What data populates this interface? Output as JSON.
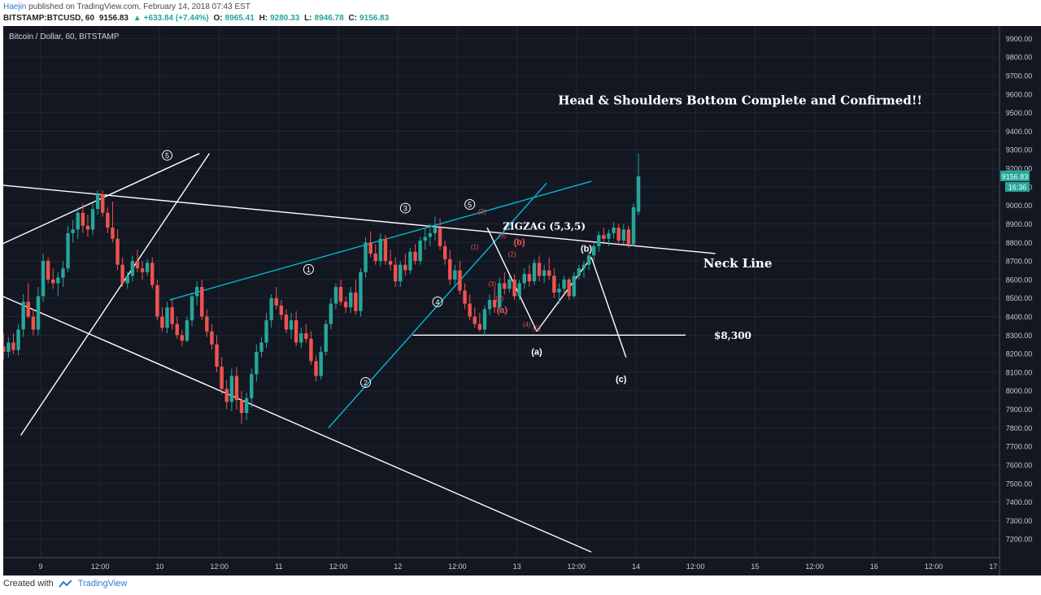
{
  "header": {
    "author": "Haejin",
    "published": "published on TradingView.com, February 14, 2018 07:43 EST",
    "symbol": "BITSTAMP:BTCUSD, 60",
    "last": "9156.83",
    "change": "+633.84 (+7.44%)",
    "open_label": "O:",
    "open": "8965.41",
    "high_label": "H:",
    "high": "9280.33",
    "low_label": "L:",
    "low": "8946.78",
    "close_label": "C:",
    "close": "9156.83"
  },
  "footer": {
    "created_with": "Created with",
    "brand": "TradingView"
  },
  "colors": {
    "background": "#131722",
    "up": "#26a69a",
    "down": "#ef5350",
    "trend": "#ffffff",
    "channel": "#00bcd4",
    "wave_sub": "#ef5350"
  },
  "chart_data": {
    "type": "candlestick",
    "title": "Bitcoin / Dollar, 60, BITSTAMP",
    "ylim": [
      7100,
      9950
    ],
    "yticks": [
      "9900.00",
      "9800.00",
      "9700.00",
      "9600.00",
      "9500.00",
      "9400.00",
      "9300.00",
      "9200.00",
      "9100.00",
      "9000.00",
      "8900.00",
      "8800.00",
      "8700.00",
      "8600.00",
      "8500.00",
      "8400.00",
      "8300.00",
      "8200.00",
      "8100.00",
      "8000.00",
      "7900.00",
      "7800.00",
      "7700.00",
      "7600.00",
      "7500.00",
      "7400.00",
      "7300.00",
      "7200.00"
    ],
    "xticks": [
      {
        "label": "9",
        "t": 12
      },
      {
        "label": "12:00",
        "t": 24
      },
      {
        "label": "10",
        "t": 36
      },
      {
        "label": "12:00",
        "t": 48
      },
      {
        "label": "11",
        "t": 60
      },
      {
        "label": "12:00",
        "t": 72
      },
      {
        "label": "12",
        "t": 84
      },
      {
        "label": "12:00",
        "t": 96
      },
      {
        "label": "13",
        "t": 108
      },
      {
        "label": "12:00",
        "t": 120
      },
      {
        "label": "14",
        "t": 132
      },
      {
        "label": "12:00",
        "t": 144
      },
      {
        "label": "15",
        "t": 156
      },
      {
        "label": "12:00",
        "t": 168
      },
      {
        "label": "16",
        "t": 180
      },
      {
        "label": "12:00",
        "t": 192
      },
      {
        "label": "17",
        "t": 204
      }
    ],
    "price_badge": "9156.83",
    "countdown_badge": "16:36",
    "annotations": {
      "main": "Head & Shoulders Bottom Complete and Confirmed!!",
      "zigzag": "ZIGZAG (5,3,5)",
      "neck": "Neck Line",
      "level": "$8,300",
      "wave_a": "(a)",
      "wave_b": "(b)",
      "wave_c": "(c)",
      "red_a": "(a)",
      "red_b": "(b)"
    },
    "waves": [
      {
        "label": "5",
        "t": 37.5,
        "p": 9270
      },
      {
        "label": "1",
        "t": 66,
        "p": 8655
      },
      {
        "label": "2",
        "t": 77.5,
        "p": 8045
      },
      {
        "label": "3",
        "t": 85.5,
        "p": 8985
      },
      {
        "label": "4",
        "t": 92,
        "p": 8480
      },
      {
        "label": "5",
        "t": 98.5,
        "p": 9005
      }
    ],
    "sub_waves": [
      {
        "label": "(2)",
        "t": 101,
        "p": 8955
      },
      {
        "label": "(1)",
        "t": 99.5,
        "p": 8765
      },
      {
        "label": "(3)",
        "t": 105,
        "p": 8825
      },
      {
        "label": "(2)",
        "t": 107,
        "p": 8725
      },
      {
        "label": "(3)",
        "t": 103,
        "p": 8565
      },
      {
        "label": "(5)",
        "t": 104.5,
        "p": 8485
      },
      {
        "label": "(4)",
        "t": 110,
        "p": 8345
      },
      {
        "label": "(5)",
        "t": 112,
        "p": 8325
      }
    ],
    "lines": [
      {
        "name": "neck-line",
        "color": "white",
        "from": [
          0,
          9120
        ],
        "to": [
          148,
          8740
        ]
      },
      {
        "name": "upper-trend-left",
        "color": "white",
        "from": [
          0,
          8740
        ],
        "to": [
          44,
          9280
        ]
      },
      {
        "name": "lower-trend",
        "color": "white",
        "from": [
          0,
          8560
        ],
        "to": [
          123,
          7130
        ]
      },
      {
        "name": "left-rise-line",
        "color": "white",
        "from": [
          8,
          7760
        ],
        "to": [
          46,
          9280
        ]
      },
      {
        "name": "cyan-upper",
        "color": "cyan",
        "from": [
          38,
          8490
        ],
        "to": [
          123,
          9130
        ]
      },
      {
        "name": "cyan-lower",
        "color": "cyan",
        "from": [
          70,
          7800
        ],
        "to": [
          114,
          9120
        ]
      },
      {
        "name": "level-8300",
        "color": "white",
        "from": [
          87,
          8300
        ],
        "to": [
          142,
          8300
        ]
      },
      {
        "name": "zigzag-a",
        "color": "white",
        "from": [
          102,
          8880
        ],
        "to": [
          112,
          8320
        ]
      },
      {
        "name": "zigzag-b",
        "color": "white",
        "from": [
          112,
          8320
        ],
        "to": [
          123,
          8720
        ]
      },
      {
        "name": "zigzag-c",
        "color": "white",
        "from": [
          123,
          8720
        ],
        "to": [
          130,
          8180
        ]
      }
    ],
    "candles": [
      {
        "o": 8180,
        "h": 8290,
        "l": 8050,
        "c": 8260
      },
      {
        "o": 8260,
        "h": 8390,
        "l": 8130,
        "c": 8140
      },
      {
        "o": 8140,
        "h": 8200,
        "l": 7950,
        "c": 7980
      },
      {
        "o": 7980,
        "h": 8110,
        "l": 7850,
        "c": 7950
      },
      {
        "o": 7950,
        "h": 8150,
        "l": 7880,
        "c": 8120
      },
      {
        "o": 8120,
        "h": 8160,
        "l": 7860,
        "c": 7880
      },
      {
        "o": 7880,
        "h": 8080,
        "l": 7790,
        "c": 8020
      },
      {
        "o": 8020,
        "h": 8100,
        "l": 7870,
        "c": 7910
      },
      {
        "o": 7910,
        "h": 8010,
        "l": 7810,
        "c": 7850
      },
      {
        "o": 7850,
        "h": 7990,
        "l": 7820,
        "c": 7960
      },
      {
        "o": 7960,
        "h": 8110,
        "l": 7930,
        "c": 8060
      },
      {
        "o": 8060,
        "h": 8140,
        "l": 8010,
        "c": 8110
      },
      {
        "o": 8110,
        "h": 8280,
        "l": 8080,
        "c": 8240
      },
      {
        "o": 8240,
        "h": 8310,
        "l": 8170,
        "c": 8210
      },
      {
        "o": 8210,
        "h": 8290,
        "l": 8180,
        "c": 8260
      },
      {
        "o": 8260,
        "h": 8310,
        "l": 8200,
        "c": 8220
      },
      {
        "o": 8220,
        "h": 8360,
        "l": 8190,
        "c": 8330
      },
      {
        "o": 8330,
        "h": 8520,
        "l": 8290,
        "c": 8480
      },
      {
        "o": 8480,
        "h": 8580,
        "l": 8390,
        "c": 8400
      },
      {
        "o": 8400,
        "h": 8440,
        "l": 8300,
        "c": 8330
      },
      {
        "o": 8330,
        "h": 8560,
        "l": 8300,
        "c": 8510
      },
      {
        "o": 8510,
        "h": 8740,
        "l": 8480,
        "c": 8700
      },
      {
        "o": 8700,
        "h": 8720,
        "l": 8580,
        "c": 8600
      },
      {
        "o": 8600,
        "h": 8660,
        "l": 8550,
        "c": 8580
      },
      {
        "o": 8580,
        "h": 8640,
        "l": 8510,
        "c": 8610
      },
      {
        "o": 8610,
        "h": 8700,
        "l": 8560,
        "c": 8660
      },
      {
        "o": 8660,
        "h": 8890,
        "l": 8640,
        "c": 8850
      },
      {
        "o": 8850,
        "h": 8920,
        "l": 8800,
        "c": 8870
      },
      {
        "o": 8870,
        "h": 8990,
        "l": 8820,
        "c": 8960
      },
      {
        "o": 8960,
        "h": 9010,
        "l": 8850,
        "c": 8890
      },
      {
        "o": 8890,
        "h": 8950,
        "l": 8830,
        "c": 8870
      },
      {
        "o": 8870,
        "h": 9010,
        "l": 8840,
        "c": 8980
      },
      {
        "o": 8980,
        "h": 9080,
        "l": 8950,
        "c": 9060
      },
      {
        "o": 9060,
        "h": 9080,
        "l": 8940,
        "c": 8960
      },
      {
        "o": 8960,
        "h": 8990,
        "l": 8850,
        "c": 8880
      },
      {
        "o": 8880,
        "h": 9020,
        "l": 8800,
        "c": 8820
      },
      {
        "o": 8820,
        "h": 8870,
        "l": 8650,
        "c": 8680
      },
      {
        "o": 8680,
        "h": 8720,
        "l": 8560,
        "c": 8580
      },
      {
        "o": 8580,
        "h": 8640,
        "l": 8550,
        "c": 8620
      },
      {
        "o": 8620,
        "h": 8730,
        "l": 8590,
        "c": 8700
      },
      {
        "o": 8700,
        "h": 8760,
        "l": 8640,
        "c": 8660
      },
      {
        "o": 8660,
        "h": 8700,
        "l": 8600,
        "c": 8640
      },
      {
        "o": 8640,
        "h": 8710,
        "l": 8620,
        "c": 8690
      },
      {
        "o": 8690,
        "h": 8720,
        "l": 8550,
        "c": 8570
      },
      {
        "o": 8570,
        "h": 8600,
        "l": 8380,
        "c": 8400
      },
      {
        "o": 8400,
        "h": 8450,
        "l": 8320,
        "c": 8340
      },
      {
        "o": 8340,
        "h": 8480,
        "l": 8310,
        "c": 8450
      },
      {
        "o": 8450,
        "h": 8490,
        "l": 8330,
        "c": 8360
      },
      {
        "o": 8360,
        "h": 8400,
        "l": 8280,
        "c": 8300
      },
      {
        "o": 8300,
        "h": 8330,
        "l": 8240,
        "c": 8270
      },
      {
        "o": 8270,
        "h": 8400,
        "l": 8260,
        "c": 8380
      },
      {
        "o": 8380,
        "h": 8530,
        "l": 8350,
        "c": 8510
      },
      {
        "o": 8510,
        "h": 8590,
        "l": 8460,
        "c": 8560
      },
      {
        "o": 8560,
        "h": 8600,
        "l": 8380,
        "c": 8400
      },
      {
        "o": 8400,
        "h": 8440,
        "l": 8290,
        "c": 8320
      },
      {
        "o": 8320,
        "h": 8360,
        "l": 8220,
        "c": 8250
      },
      {
        "o": 8250,
        "h": 8300,
        "l": 8100,
        "c": 8130
      },
      {
        "o": 8130,
        "h": 8180,
        "l": 7980,
        "c": 8010
      },
      {
        "o": 8010,
        "h": 8060,
        "l": 7900,
        "c": 7940
      },
      {
        "o": 7940,
        "h": 8120,
        "l": 7890,
        "c": 8080
      },
      {
        "o": 8080,
        "h": 8130,
        "l": 7900,
        "c": 7950
      },
      {
        "o": 7950,
        "h": 8000,
        "l": 7820,
        "c": 7880
      },
      {
        "o": 7880,
        "h": 7990,
        "l": 7840,
        "c": 7960
      },
      {
        "o": 7960,
        "h": 8120,
        "l": 7910,
        "c": 8090
      },
      {
        "o": 8090,
        "h": 8250,
        "l": 8050,
        "c": 8210
      },
      {
        "o": 8210,
        "h": 8290,
        "l": 8180,
        "c": 8260
      },
      {
        "o": 8260,
        "h": 8420,
        "l": 8230,
        "c": 8380
      },
      {
        "o": 8380,
        "h": 8520,
        "l": 8340,
        "c": 8500
      },
      {
        "o": 8500,
        "h": 8560,
        "l": 8440,
        "c": 8460
      },
      {
        "o": 8460,
        "h": 8490,
        "l": 8380,
        "c": 8410
      },
      {
        "o": 8410,
        "h": 8440,
        "l": 8310,
        "c": 8330
      },
      {
        "o": 8330,
        "h": 8420,
        "l": 8280,
        "c": 8380
      },
      {
        "o": 8380,
        "h": 8430,
        "l": 8240,
        "c": 8260
      },
      {
        "o": 8260,
        "h": 8340,
        "l": 8230,
        "c": 8310
      },
      {
        "o": 8310,
        "h": 8360,
        "l": 8260,
        "c": 8280
      },
      {
        "o": 8280,
        "h": 8320,
        "l": 8140,
        "c": 8160
      },
      {
        "o": 8160,
        "h": 8190,
        "l": 8050,
        "c": 8080
      },
      {
        "o": 8080,
        "h": 8240,
        "l": 8060,
        "c": 8210
      },
      {
        "o": 8210,
        "h": 8380,
        "l": 8190,
        "c": 8360
      },
      {
        "o": 8360,
        "h": 8500,
        "l": 8330,
        "c": 8470
      },
      {
        "o": 8470,
        "h": 8580,
        "l": 8440,
        "c": 8560
      },
      {
        "o": 8560,
        "h": 8600,
        "l": 8460,
        "c": 8480
      },
      {
        "o": 8480,
        "h": 8510,
        "l": 8420,
        "c": 8450
      },
      {
        "o": 8450,
        "h": 8560,
        "l": 8420,
        "c": 8530
      },
      {
        "o": 8530,
        "h": 8600,
        "l": 8410,
        "c": 8430
      },
      {
        "o": 8430,
        "h": 8660,
        "l": 8400,
        "c": 8640
      },
      {
        "o": 8640,
        "h": 8830,
        "l": 8610,
        "c": 8800
      },
      {
        "o": 8800,
        "h": 8860,
        "l": 8720,
        "c": 8740
      },
      {
        "o": 8740,
        "h": 8790,
        "l": 8680,
        "c": 8700
      },
      {
        "o": 8700,
        "h": 8850,
        "l": 8670,
        "c": 8820
      },
      {
        "o": 8820,
        "h": 8840,
        "l": 8680,
        "c": 8700
      },
      {
        "o": 8700,
        "h": 8760,
        "l": 8650,
        "c": 8680
      },
      {
        "o": 8680,
        "h": 8720,
        "l": 8560,
        "c": 8590
      },
      {
        "o": 8590,
        "h": 8700,
        "l": 8560,
        "c": 8680
      },
      {
        "o": 8680,
        "h": 8740,
        "l": 8620,
        "c": 8650
      },
      {
        "o": 8650,
        "h": 8770,
        "l": 8630,
        "c": 8750
      },
      {
        "o": 8750,
        "h": 8790,
        "l": 8680,
        "c": 8700
      },
      {
        "o": 8700,
        "h": 8830,
        "l": 8680,
        "c": 8810
      },
      {
        "o": 8810,
        "h": 8880,
        "l": 8760,
        "c": 8830
      },
      {
        "o": 8830,
        "h": 8900,
        "l": 8780,
        "c": 8850
      },
      {
        "o": 8850,
        "h": 8940,
        "l": 8810,
        "c": 8880
      },
      {
        "o": 8880,
        "h": 8930,
        "l": 8760,
        "c": 8780
      },
      {
        "o": 8780,
        "h": 8810,
        "l": 8680,
        "c": 8710
      },
      {
        "o": 8710,
        "h": 8760,
        "l": 8570,
        "c": 8600
      },
      {
        "o": 8600,
        "h": 8680,
        "l": 8570,
        "c": 8650
      },
      {
        "o": 8650,
        "h": 8700,
        "l": 8520,
        "c": 8540
      },
      {
        "o": 8540,
        "h": 8580,
        "l": 8440,
        "c": 8470
      },
      {
        "o": 8470,
        "h": 8520,
        "l": 8380,
        "c": 8400
      },
      {
        "o": 8400,
        "h": 8450,
        "l": 8340,
        "c": 8360
      },
      {
        "o": 8360,
        "h": 8420,
        "l": 8320,
        "c": 8330
      },
      {
        "o": 8330,
        "h": 8460,
        "l": 8300,
        "c": 8440
      },
      {
        "o": 8440,
        "h": 8520,
        "l": 8410,
        "c": 8490
      },
      {
        "o": 8490,
        "h": 8560,
        "l": 8420,
        "c": 8450
      },
      {
        "o": 8450,
        "h": 8610,
        "l": 8430,
        "c": 8580
      },
      {
        "o": 8580,
        "h": 8640,
        "l": 8520,
        "c": 8550
      },
      {
        "o": 8550,
        "h": 8620,
        "l": 8530,
        "c": 8600
      },
      {
        "o": 8600,
        "h": 8630,
        "l": 8490,
        "c": 8510
      },
      {
        "o": 8510,
        "h": 8600,
        "l": 8490,
        "c": 8580
      },
      {
        "o": 8580,
        "h": 8660,
        "l": 8550,
        "c": 8630
      },
      {
        "o": 8630,
        "h": 8680,
        "l": 8560,
        "c": 8590
      },
      {
        "o": 8590,
        "h": 8710,
        "l": 8570,
        "c": 8690
      },
      {
        "o": 8690,
        "h": 8730,
        "l": 8590,
        "c": 8620
      },
      {
        "o": 8620,
        "h": 8680,
        "l": 8580,
        "c": 8650
      },
      {
        "o": 8650,
        "h": 8720,
        "l": 8600,
        "c": 8620
      },
      {
        "o": 8620,
        "h": 8660,
        "l": 8500,
        "c": 8530
      },
      {
        "o": 8530,
        "h": 8580,
        "l": 8470,
        "c": 8550
      },
      {
        "o": 8550,
        "h": 8620,
        "l": 8530,
        "c": 8600
      },
      {
        "o": 8600,
        "h": 8610,
        "l": 8490,
        "c": 8510
      },
      {
        "o": 8510,
        "h": 8640,
        "l": 8500,
        "c": 8620
      },
      {
        "o": 8620,
        "h": 8680,
        "l": 8600,
        "c": 8660
      },
      {
        "o": 8660,
        "h": 8700,
        "l": 8610,
        "c": 8680
      },
      {
        "o": 8680,
        "h": 8750,
        "l": 8650,
        "c": 8730
      },
      {
        "o": 8730,
        "h": 8800,
        "l": 8700,
        "c": 8780
      },
      {
        "o": 8780,
        "h": 8860,
        "l": 8750,
        "c": 8840
      },
      {
        "o": 8840,
        "h": 8880,
        "l": 8800,
        "c": 8820
      },
      {
        "o": 8820,
        "h": 8870,
        "l": 8780,
        "c": 8850
      },
      {
        "o": 8850,
        "h": 8910,
        "l": 8820,
        "c": 8880
      },
      {
        "o": 8880,
        "h": 8900,
        "l": 8790,
        "c": 8810
      },
      {
        "o": 8810,
        "h": 8900,
        "l": 8790,
        "c": 8870
      },
      {
        "o": 8870,
        "h": 8890,
        "l": 8770,
        "c": 8790
      },
      {
        "o": 8790,
        "h": 9010,
        "l": 8780,
        "c": 8990
      },
      {
        "o": 8965.41,
        "h": 9280.33,
        "l": 8946.78,
        "c": 9156.83
      }
    ]
  }
}
